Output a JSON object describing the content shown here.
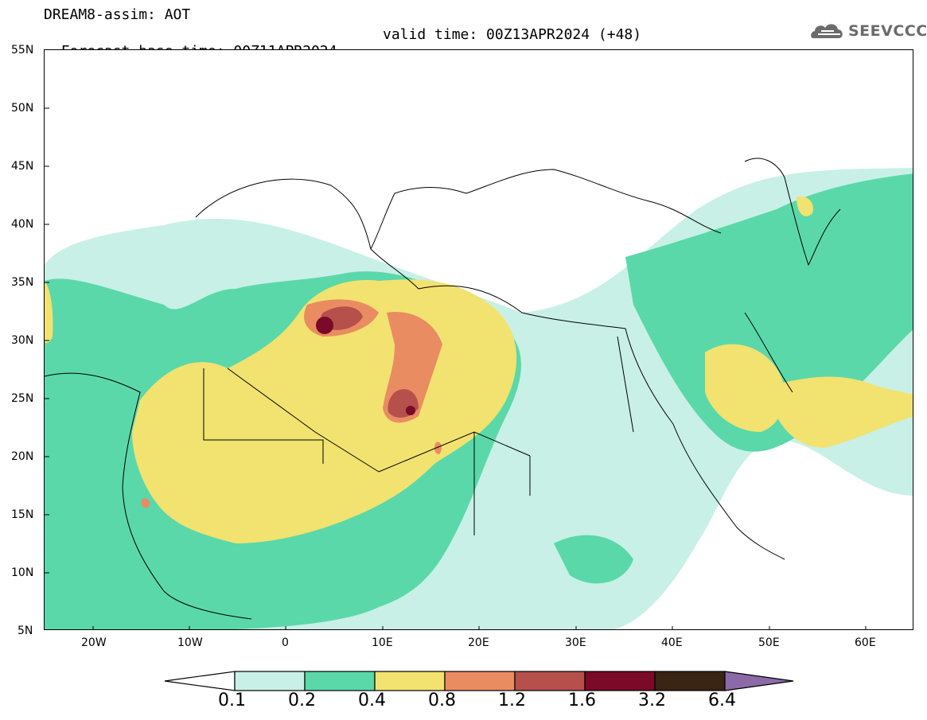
{
  "header": {
    "title_line1": "DREAM8-assim: AOT",
    "base_time": "Forecast base time: 00Z11APR2024",
    "valid_time": "valid time: 00Z13APR2024 (+48)"
  },
  "logo": {
    "text": "SEEVCCC",
    "icon": "cloud-icon",
    "color": "#6b6b6b"
  },
  "map": {
    "variable": "AOT",
    "lat_labels": [
      "55N",
      "50N",
      "45N",
      "40N",
      "35N",
      "30N",
      "25N",
      "20N",
      "15N",
      "10N",
      "5N"
    ],
    "lon_labels": [
      "20W",
      "10W",
      "0",
      "10E",
      "20E",
      "30E",
      "40E",
      "50E",
      "60E"
    ],
    "extent": {
      "lon_min": -25,
      "lon_max": 65,
      "lat_min": 5,
      "lat_max": 55
    }
  },
  "colorbar": {
    "levels": [
      "0.1",
      "0.2",
      "0.4",
      "0.8",
      "1.2",
      "1.6",
      "3.2",
      "6.4"
    ],
    "colors": [
      "#c8f0e6",
      "#5ad8aa",
      "#f2e270",
      "#e98c62",
      "#b5504a",
      "#7a0a28",
      "#3a2414",
      "#8c6aa8"
    ]
  }
}
